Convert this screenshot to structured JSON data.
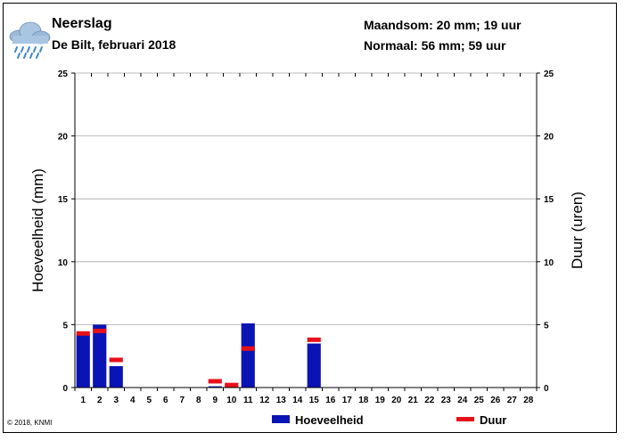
{
  "header": {
    "title": "Neerslag",
    "subtitle": "De Bilt, februari 2018",
    "month_total": "Maandsom: 20 mm; 19 uur",
    "normal": "Normaal: 56 mm; 59 uur",
    "icon": "rain-cloud-icon"
  },
  "footer": {
    "copyright": "© 2018, KNMI"
  },
  "colors": {
    "amount": "#0a14b4",
    "duration": "#e8101a",
    "grid": "#a8a8a8",
    "cloud": "#9ab8d8",
    "drops": "#3f86c8"
  },
  "chart_data": {
    "type": "bar",
    "categories": [
      "1",
      "2",
      "3",
      "4",
      "5",
      "6",
      "7",
      "8",
      "9",
      "10",
      "11",
      "12",
      "13",
      "14",
      "15",
      "16",
      "17",
      "18",
      "19",
      "20",
      "21",
      "22",
      "23",
      "24",
      "25",
      "26",
      "27",
      "28"
    ],
    "series": [
      {
        "name": "Hoeveelheid",
        "values": [
          4.2,
          5.0,
          1.7,
          0,
          0,
          0,
          0,
          0,
          0.1,
          0.1,
          5.1,
          0,
          0,
          0,
          3.5,
          0,
          0,
          0,
          0,
          0,
          0,
          0,
          0,
          0,
          0,
          0,
          0,
          0
        ]
      },
      {
        "name": "Duur",
        "values": [
          4.3,
          4.5,
          2.2,
          0,
          0,
          0,
          0,
          0,
          0.5,
          0.2,
          3.1,
          0,
          0,
          0,
          3.8,
          0,
          0,
          0,
          0,
          0,
          0,
          0,
          0,
          0,
          0,
          0,
          0,
          0
        ]
      }
    ],
    "ylabel": "Hoeveelheid (mm)",
    "y2label": "Duur (uren)",
    "ylim": [
      0,
      25
    ],
    "y2lim": [
      0,
      25
    ],
    "yticks": [
      0,
      5,
      10,
      15,
      20,
      25
    ],
    "grid": true,
    "legend_position": "bottom"
  }
}
